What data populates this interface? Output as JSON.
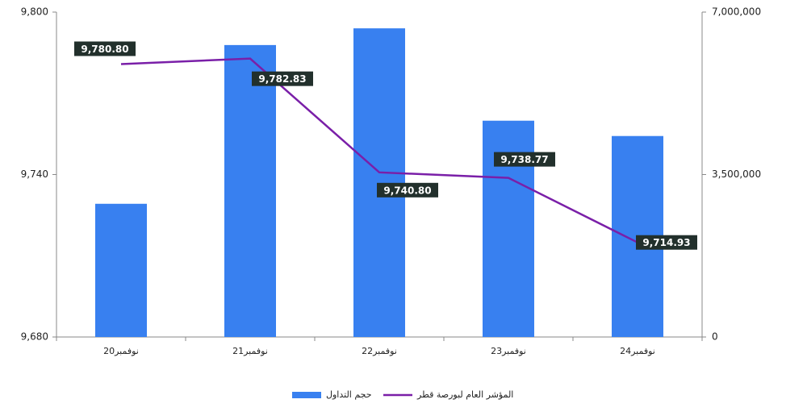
{
  "chart_data": {
    "type": "bar-line",
    "categories": [
      "نوفمبر20",
      "نوفمبر21",
      "نوفمبر22",
      "نوفمبر23",
      "نوفمبر24"
    ],
    "series": [
      {
        "name": "حجم التداول",
        "type": "bar",
        "axis": "y2",
        "color": "#3880f0",
        "values": [
          2870000,
          6290000,
          6650000,
          4660000,
          4330000
        ]
      },
      {
        "name": "المؤشر العام لبورصة قطر",
        "type": "line",
        "axis": "y",
        "color": "#7a1fa8",
        "values": [
          9780.8,
          9782.83,
          9740.8,
          9738.77,
          9714.93
        ],
        "value_labels": [
          "9,780.80",
          "9,782.83",
          "9,740.80",
          "9,738.77",
          "9,714.93"
        ]
      }
    ],
    "ylim": [
      9680,
      9800
    ],
    "yticks": [
      {
        "value": 9680,
        "label": "9,680"
      },
      {
        "value": 9740,
        "label": "9,740"
      },
      {
        "value": 9800,
        "label": "9,800"
      }
    ],
    "y2lim": [
      0,
      7000000
    ],
    "y2ticks": [
      0,
      {
        "value": 3500000,
        "label": "3,500,000"
      },
      {
        "value": 7000000,
        "label": "7,000,000"
      }
    ],
    "grid": false,
    "legend": "bottom"
  }
}
